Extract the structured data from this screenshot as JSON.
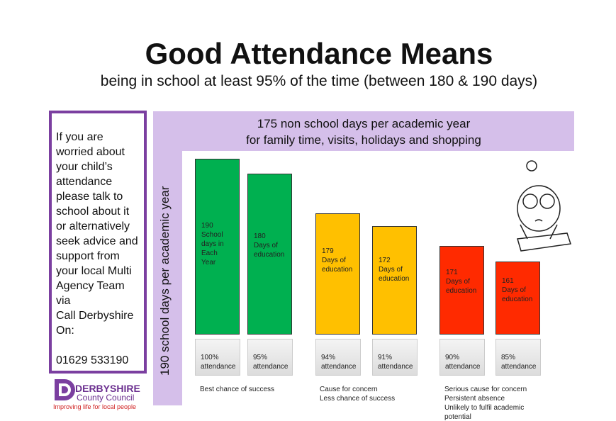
{
  "header": {
    "title": "Good Attendance Means",
    "subtitle": "being in school at least 95% of the time (between 180 & 190 days)"
  },
  "sidebar": {
    "lines": [
      "If you are",
      "worried about",
      "your child’s",
      "attendance",
      "please talk to",
      "school about it",
      "or alternatively",
      "seek advice and",
      "support from",
      "your local Multi",
      "Agency Team",
      "via",
      "Call Derbyshire",
      "On:"
    ],
    "phone": "01629 533190"
  },
  "logo": {
    "name": "DERBYSHIRE",
    "council": "County Council",
    "tagline": "Improving life for local people"
  },
  "panel": {
    "banner": [
      "175 non school days per academic  year",
      "for family time, visits, holidays and shopping"
    ],
    "side_label": "190 school days per academic year"
  },
  "bars": [
    {
      "label": [
        "190",
        "School",
        "days in",
        "Each",
        "Year"
      ],
      "attendance": [
        "100%",
        "attendance"
      ],
      "color": "#00b050"
    },
    {
      "label": [
        "180",
        "Days of",
        "education"
      ],
      "attendance": [
        "95%",
        "attendance"
      ],
      "color": "#00b050"
    },
    {
      "label": [
        "179",
        "Days of",
        "education"
      ],
      "attendance": [
        "94%",
        "attendance"
      ],
      "color": "#ffc000"
    },
    {
      "label": [
        "172",
        "Days of",
        "education"
      ],
      "attendance": [
        "91%",
        "attendance"
      ],
      "color": "#ffc000"
    },
    {
      "label": [
        "171",
        "Days of",
        "education"
      ],
      "attendance": [
        "90%",
        "attendance"
      ],
      "color": "#ff2a00"
    },
    {
      "label": [
        "161",
        "Days of",
        "education"
      ],
      "attendance": [
        "85%",
        "attendance"
      ],
      "color": "#ff2a00"
    }
  ],
  "notes": [
    [
      "Best chance of success"
    ],
    [
      "Cause for concern",
      "Less chance of success"
    ],
    [
      "Serious cause for concern",
      "Persistent absence",
      "Unlikely to fulfil academic",
      "potential"
    ]
  ]
}
